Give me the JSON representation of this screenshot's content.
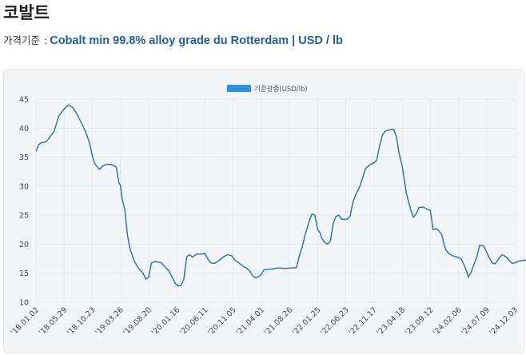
{
  "page": {
    "title": "코발트",
    "subtitle_prefix": "가격기준",
    "subtitle_sep": ":",
    "subtitle_main": "Cobalt min 99.8% alloy grade du Rotterdam | USD / lb"
  },
  "colors": {
    "line": "#1f6fb2",
    "legend": "#2f8fd8",
    "grid": "#e3e7ec"
  },
  "chart_data": {
    "type": "line",
    "title": "",
    "legend": [
      "기준광종(USD/lb)"
    ],
    "ylim": [
      10,
      45
    ],
    "yticks": [
      10,
      15,
      20,
      25,
      30,
      35,
      40,
      45
    ],
    "xtick_labels": [
      "'18.01.02",
      "'18.05.29",
      "'18.10.23",
      "'19.03.26",
      "'19.08.20",
      "'20.01.16",
      "'20.06.11",
      "'20.11.05",
      "'21.04.01",
      "'21.08.26",
      "'22.01.25",
      "'22.06.23",
      "'22.11.17",
      "'23.04.18",
      "'23.09.12",
      "'24.02.06",
      "'24.07.09",
      "'24.12.03"
    ],
    "series": [
      {
        "name": "기준광종(USD/lb)",
        "points": [
          [
            0.0,
            36
          ],
          [
            0.1,
            37.2
          ],
          [
            0.2,
            37.5
          ],
          [
            0.35,
            37.6
          ],
          [
            0.5,
            38.5
          ],
          [
            0.65,
            39.5
          ],
          [
            0.8,
            42
          ],
          [
            1.0,
            43.3
          ],
          [
            1.15,
            44
          ],
          [
            1.3,
            43.6
          ],
          [
            1.45,
            42.5
          ],
          [
            1.6,
            41
          ],
          [
            1.75,
            39.5
          ],
          [
            1.9,
            37.5
          ],
          [
            2.0,
            35.2
          ],
          [
            2.1,
            33.8
          ],
          [
            2.25,
            32.9
          ],
          [
            2.4,
            33.6
          ],
          [
            2.55,
            33.8
          ],
          [
            2.7,
            33.7
          ],
          [
            2.85,
            33.3
          ],
          [
            2.95,
            30.5
          ],
          [
            3.0,
            30.2
          ],
          [
            3.05,
            28
          ],
          [
            3.15,
            26
          ],
          [
            3.25,
            21.5
          ],
          [
            3.35,
            19
          ],
          [
            3.5,
            17
          ],
          [
            3.65,
            15.8
          ],
          [
            3.8,
            15
          ],
          [
            3.9,
            14
          ],
          [
            4.0,
            14.3
          ],
          [
            4.1,
            16.8
          ],
          [
            4.25,
            17
          ],
          [
            4.45,
            16.8
          ],
          [
            4.6,
            16
          ],
          [
            4.72,
            15.4
          ],
          [
            4.85,
            14.2
          ],
          [
            4.95,
            13.2
          ],
          [
            5.05,
            12.8
          ],
          [
            5.15,
            12.9
          ],
          [
            5.25,
            14
          ],
          [
            5.35,
            17.8
          ],
          [
            5.45,
            18.2
          ],
          [
            5.55,
            17.8
          ],
          [
            5.7,
            18.3
          ],
          [
            5.85,
            18.3
          ],
          [
            6.0,
            18.4
          ],
          [
            6.1,
            17.5
          ],
          [
            6.2,
            16.8
          ],
          [
            6.35,
            16.7
          ],
          [
            6.5,
            17.2
          ],
          [
            6.65,
            17.8
          ],
          [
            6.8,
            18.2
          ],
          [
            6.95,
            18
          ],
          [
            7.05,
            17.3
          ],
          [
            7.2,
            16.8
          ],
          [
            7.35,
            16.2
          ],
          [
            7.5,
            15.8
          ],
          [
            7.6,
            15.3
          ],
          [
            7.7,
            14.5
          ],
          [
            7.8,
            14.2
          ],
          [
            7.9,
            14.4
          ],
          [
            8.0,
            14.8
          ],
          [
            8.1,
            15.6
          ],
          [
            8.25,
            15.7
          ],
          [
            8.4,
            15.7
          ],
          [
            8.55,
            15.9
          ],
          [
            8.7,
            15.9
          ],
          [
            8.85,
            15.8
          ],
          [
            9.0,
            15.9
          ],
          [
            9.15,
            15.9
          ],
          [
            9.25,
            16
          ],
          [
            9.35,
            18
          ],
          [
            9.45,
            19.5
          ],
          [
            9.55,
            21.5
          ],
          [
            9.7,
            24
          ],
          [
            9.8,
            25.2
          ],
          [
            9.9,
            25
          ],
          [
            10.0,
            22.5
          ],
          [
            10.08,
            22
          ],
          [
            10.15,
            21
          ],
          [
            10.25,
            20.3
          ],
          [
            10.35,
            20
          ],
          [
            10.45,
            20.5
          ],
          [
            10.55,
            23.5
          ],
          [
            10.65,
            24.8
          ],
          [
            10.75,
            25
          ],
          [
            10.85,
            24.3
          ],
          [
            10.95,
            24.3
          ],
          [
            11.05,
            24.3
          ],
          [
            11.15,
            24.8
          ],
          [
            11.25,
            27.2
          ],
          [
            11.35,
            28.5
          ],
          [
            11.5,
            30
          ],
          [
            11.6,
            31.5
          ],
          [
            11.7,
            33
          ],
          [
            11.85,
            33.7
          ],
          [
            12.0,
            34
          ],
          [
            12.1,
            34.5
          ],
          [
            12.2,
            37
          ],
          [
            12.3,
            38.8
          ],
          [
            12.4,
            39.5
          ],
          [
            12.55,
            39.7
          ],
          [
            12.7,
            39.8
          ],
          [
            12.8,
            38.5
          ],
          [
            12.9,
            35.5
          ],
          [
            13.0,
            33.5
          ],
          [
            13.08,
            31
          ],
          [
            13.15,
            28.8
          ],
          [
            13.3,
            26
          ],
          [
            13.4,
            24.6
          ],
          [
            13.5,
            25.3
          ],
          [
            13.6,
            26.3
          ],
          [
            13.75,
            26.4
          ],
          [
            13.9,
            26
          ],
          [
            14.0,
            25.8
          ],
          [
            14.1,
            22.5
          ],
          [
            14.2,
            22.7
          ],
          [
            14.3,
            22.3
          ],
          [
            14.4,
            21.7
          ],
          [
            14.5,
            19.8
          ],
          [
            14.55,
            19
          ],
          [
            14.65,
            18.4
          ],
          [
            14.8,
            18
          ],
          [
            14.95,
            17.8
          ],
          [
            15.1,
            17.4
          ],
          [
            15.2,
            16.4
          ],
          [
            15.3,
            15.2
          ],
          [
            15.35,
            14.3
          ],
          [
            15.45,
            15.2
          ],
          [
            15.55,
            16.5
          ],
          [
            15.65,
            17.8
          ],
          [
            15.75,
            19.8
          ],
          [
            15.9,
            19.7
          ],
          [
            16.0,
            18.6
          ],
          [
            16.1,
            17.6
          ],
          [
            16.2,
            16.8
          ],
          [
            16.3,
            16.6
          ],
          [
            16.4,
            17.3
          ],
          [
            16.55,
            18.2
          ],
          [
            16.7,
            17.8
          ],
          [
            16.8,
            17.2
          ],
          [
            16.9,
            16.7
          ],
          [
            17.0,
            16.8
          ],
          [
            17.15,
            17.1
          ],
          [
            17.3,
            17.2
          ],
          [
            17.45,
            17.3
          ],
          [
            17.6,
            17.5
          ],
          [
            17.75,
            17.2
          ],
          [
            17.9,
            17.1
          ],
          [
            18.05,
            16.9
          ],
          [
            18.2,
            16.9
          ],
          [
            18.35,
            16.9
          ],
          [
            18.5,
            16.9
          ],
          [
            18.6,
            16.4
          ],
          [
            18.7,
            15.6
          ],
          [
            18.9,
            15.5
          ],
          [
            19.1,
            15.4
          ],
          [
            19.3,
            15.3
          ],
          [
            19.45,
            15.3
          ],
          [
            19.6,
            15.1
          ],
          [
            19.75,
            14.8
          ],
          [
            19.9,
            14.5
          ],
          [
            20.05,
            14.3
          ],
          [
            20.2,
            14
          ],
          [
            20.35,
            14
          ],
          [
            20.5,
            14
          ],
          [
            20.65,
            14.1
          ],
          [
            20.7,
            18.5
          ]
        ]
      }
    ]
  }
}
